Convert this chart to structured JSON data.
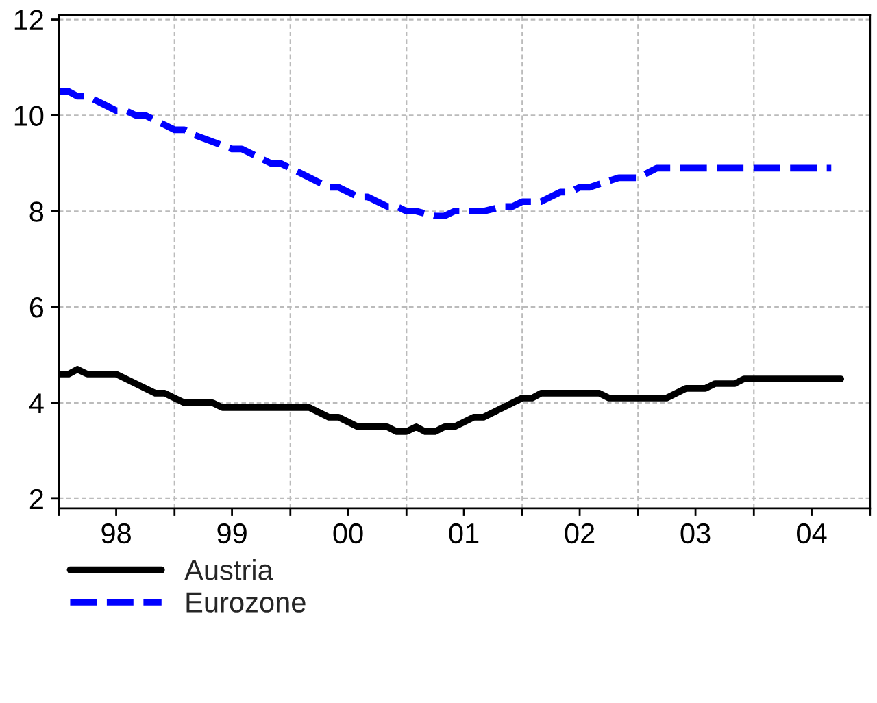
{
  "chart_data": {
    "type": "line",
    "xlim": [
      "1998-01",
      "2005-01"
    ],
    "ylim": [
      1.8,
      12.1
    ],
    "yticks": [
      2,
      4,
      6,
      8,
      10,
      12
    ],
    "xticks": [
      {
        "value": "1998-01",
        "label": null
      },
      {
        "value": "1998-07",
        "label": "98"
      },
      {
        "value": "1999-01",
        "label": null
      },
      {
        "value": "1999-07",
        "label": "99"
      },
      {
        "value": "2000-01",
        "label": null
      },
      {
        "value": "2000-07",
        "label": "00"
      },
      {
        "value": "2001-01",
        "label": null
      },
      {
        "value": "2001-07",
        "label": "01"
      },
      {
        "value": "2002-01",
        "label": null
      },
      {
        "value": "2002-07",
        "label": "02"
      },
      {
        "value": "2003-01",
        "label": null
      },
      {
        "value": "2003-07",
        "label": "03"
      },
      {
        "value": "2004-01",
        "label": null
      },
      {
        "value": "2004-07",
        "label": "04"
      },
      {
        "value": "2005-01",
        "label": null
      }
    ],
    "grid": true,
    "legend": "bottom left",
    "series": [
      {
        "name": "Austria",
        "color": "#000000",
        "line_style": "solid",
        "x": [
          "1998-01",
          "1998-02",
          "1998-03",
          "1998-04",
          "1998-07",
          "1998-11",
          "1998-12",
          "1999-02",
          "1999-05",
          "1999-06",
          "2000-03",
          "2000-05",
          "2000-06",
          "2000-08",
          "2000-11",
          "2000-12",
          "2001-01",
          "2001-02",
          "2001-03",
          "2001-04",
          "2001-05",
          "2001-06",
          "2001-08",
          "2001-09",
          "2002-01",
          "2002-02",
          "2002-03",
          "2002-09",
          "2002-10",
          "2003-04",
          "2003-06",
          "2003-08",
          "2003-09",
          "2003-11",
          "2003-12",
          "2004-10"
        ],
        "values": [
          4.6,
          4.6,
          4.7,
          4.6,
          4.6,
          4.2,
          4.2,
          4.0,
          4.0,
          3.9,
          3.9,
          3.7,
          3.7,
          3.5,
          3.5,
          3.4,
          3.4,
          3.5,
          3.4,
          3.4,
          3.5,
          3.5,
          3.7,
          3.7,
          4.1,
          4.1,
          4.2,
          4.2,
          4.1,
          4.1,
          4.3,
          4.3,
          4.4,
          4.4,
          4.5,
          4.5
        ]
      },
      {
        "name": "Eurozone",
        "color": "#0000ff",
        "line_style": "dashed",
        "x": [
          "1998-01",
          "1998-02",
          "1998-03",
          "1998-04",
          "1998-07",
          "1998-08",
          "1998-09",
          "1998-10",
          "1999-01",
          "1999-02",
          "1999-03",
          "1999-07",
          "1999-08",
          "1999-11",
          "1999-12",
          "2000-02",
          "2000-05",
          "2000-06",
          "2000-08",
          "2000-09",
          "2000-11",
          "2000-12",
          "2001-01",
          "2001-02",
          "2001-04",
          "2001-05",
          "2001-06",
          "2001-09",
          "2001-11",
          "2001-12",
          "2002-01",
          "2002-03",
          "2002-05",
          "2002-06",
          "2002-07",
          "2002-08",
          "2002-11",
          "2003-01",
          "2003-03",
          "2004-09"
        ],
        "values": [
          10.5,
          10.5,
          10.4,
          10.4,
          10.1,
          10.1,
          10.0,
          10.0,
          9.7,
          9.7,
          9.6,
          9.3,
          9.3,
          9.0,
          9.0,
          8.8,
          8.5,
          8.5,
          8.3,
          8.3,
          8.1,
          8.1,
          8.0,
          8.0,
          7.9,
          7.9,
          8.0,
          8.0,
          8.1,
          8.1,
          8.2,
          8.2,
          8.4,
          8.4,
          8.5,
          8.5,
          8.7,
          8.7,
          8.9,
          8.9
        ]
      }
    ]
  }
}
